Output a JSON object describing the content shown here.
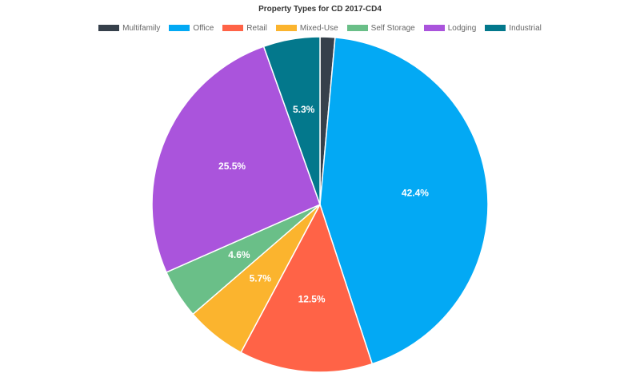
{
  "chart_data": {
    "type": "pie",
    "title": "Property Types for CD 2017-CD4",
    "legend_position": "top",
    "slices": [
      {
        "name": "Multifamily",
        "value": 1.4,
        "label": "",
        "color": "#36404b"
      },
      {
        "name": "Office",
        "value": 42.4,
        "label": "42.4%",
        "color": "#03a9f4"
      },
      {
        "name": "Retail",
        "value": 12.5,
        "label": "12.5%",
        "color": "#ff6347"
      },
      {
        "name": "Mixed-Use",
        "value": 5.7,
        "label": "5.7%",
        "color": "#fbb42e"
      },
      {
        "name": "Self Storage",
        "value": 4.6,
        "label": "4.6%",
        "color": "#6abf88"
      },
      {
        "name": "Lodging",
        "value": 25.5,
        "label": "25.5%",
        "color": "#aa54dc"
      },
      {
        "name": "Industrial",
        "value": 5.3,
        "label": "5.3%",
        "color": "#03788c"
      }
    ]
  }
}
